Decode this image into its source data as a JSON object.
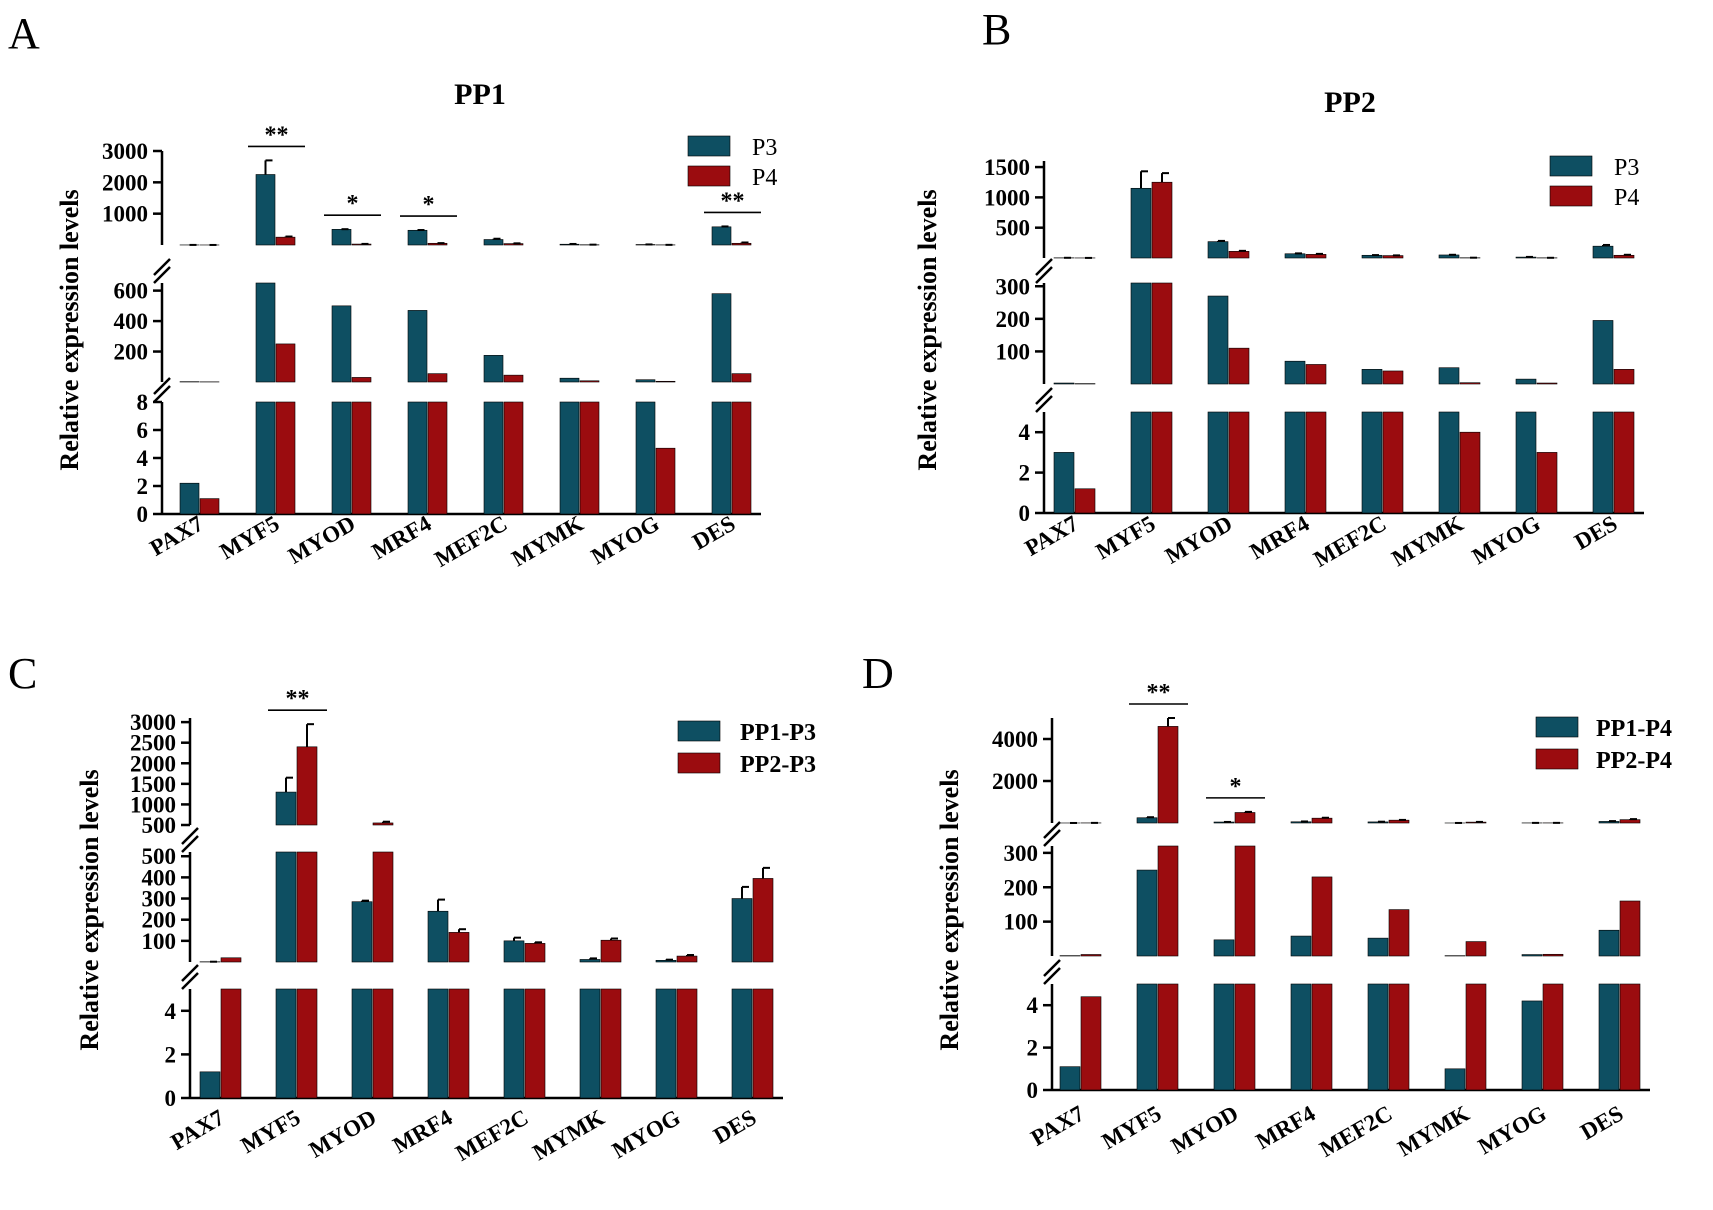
{
  "colors": {
    "series1": "#0e4f62",
    "series2": "#9b0c0f",
    "axis": "#000000"
  },
  "chart_data": [
    {
      "panel": "A",
      "type": "bar",
      "title": "PP1",
      "ylabel": "Relative expression levels",
      "xlabel": "",
      "legend_position": "top-right",
      "legend_bold": false,
      "categories": [
        "PAX7",
        "MYF5",
        "MYOD",
        "MRF4",
        "MEF2C",
        "MYMK",
        "MYOG",
        "DES"
      ],
      "series": [
        {
          "name": "P3",
          "values": [
            2.2,
            2250,
            500,
            470,
            175,
            25,
            15,
            580
          ],
          "errors": [
            0.15,
            450,
            5,
            8,
            25,
            8,
            3,
            12
          ]
        },
        {
          "name": "P4",
          "values": [
            1.1,
            250,
            30,
            55,
            45,
            8,
            4.7,
            55
          ],
          "errors": [
            0.1,
            20,
            5,
            5,
            8,
            3,
            0.1,
            25
          ]
        }
      ],
      "y_segments": [
        {
          "range": [
            0,
            8
          ],
          "ticks": [
            "0",
            "2",
            "4",
            "6",
            "8"
          ]
        },
        {
          "range": [
            0,
            650
          ],
          "ticks": [
            "200",
            "400",
            "600"
          ]
        },
        {
          "range": [
            0,
            3000
          ],
          "ticks": [
            "1000",
            "2000",
            "3000"
          ]
        }
      ],
      "significance": [
        {
          "category": "MYF5",
          "label": "**"
        },
        {
          "category": "MYOD",
          "label": "*"
        },
        {
          "category": "MRF4",
          "label": "*"
        },
        {
          "category": "DES",
          "label": "**"
        }
      ]
    },
    {
      "panel": "B",
      "type": "bar",
      "title": "PP2",
      "ylabel": "Relative expression levels",
      "xlabel": "",
      "legend_position": "top-right",
      "legend_bold": false,
      "categories": [
        "PAX7",
        "MYF5",
        "MYOD",
        "MRF4",
        "MEF2C",
        "MYMK",
        "MYOG",
        "DES"
      ],
      "series": [
        {
          "name": "P3",
          "values": [
            3.0,
            1150,
            270,
            70,
            45,
            50,
            15,
            195
          ],
          "errors": [
            0.35,
            280,
            12,
            6,
            3,
            3,
            3,
            20
          ]
        },
        {
          "name": "P4",
          "values": [
            1.2,
            1250,
            110,
            60,
            40,
            4,
            3.0,
            45
          ],
          "errors": [
            0.25,
            150,
            8,
            8,
            3,
            1,
            0.3,
            8
          ]
        }
      ],
      "y_segments": [
        {
          "range": [
            0,
            5
          ],
          "ticks": [
            "0",
            "2",
            "4"
          ]
        },
        {
          "range": [
            0,
            310
          ],
          "ticks": [
            "100",
            "200",
            "300"
          ]
        },
        {
          "range": [
            0,
            1600
          ],
          "ticks": [
            "500",
            "1000",
            "1500"
          ]
        }
      ],
      "significance": []
    },
    {
      "panel": "C",
      "type": "bar",
      "title": "",
      "ylabel": "Relative expression levels",
      "xlabel": "",
      "legend_position": "top-right",
      "legend_bold": true,
      "categories": [
        "PAX7",
        "MYF5",
        "MYOD",
        "MRF4",
        "MEF2C",
        "MYMK",
        "MYOG",
        "DES"
      ],
      "series": [
        {
          "name": "PP1-P3",
          "values": [
            1.2,
            1300,
            285,
            240,
            100,
            12,
            8,
            300
          ],
          "errors": [
            0.15,
            350,
            5,
            55,
            15,
            5,
            3,
            55
          ]
        },
        {
          "name": "PP2-P3",
          "values": [
            20,
            2400,
            550,
            140,
            88,
            103,
            28,
            395
          ],
          "errors": [
            0,
            550,
            30,
            15,
            5,
            8,
            5,
            50
          ]
        }
      ],
      "y_segments": [
        {
          "range": [
            0,
            5
          ],
          "ticks": [
            "0",
            "2",
            "4"
          ]
        },
        {
          "range": [
            0,
            520
          ],
          "ticks": [
            "100",
            "200",
            "300",
            "400",
            "500"
          ]
        },
        {
          "range": [
            500,
            3100
          ],
          "ticks": [
            "500",
            "1000",
            "1500",
            "2000",
            "2500",
            "3000"
          ]
        }
      ],
      "significance": [
        {
          "category": "MYF5",
          "label": "**"
        }
      ]
    },
    {
      "panel": "D",
      "type": "bar",
      "title": "",
      "ylabel": "Relative expression levels",
      "xlabel": "",
      "legend_position": "top-right",
      "legend_bold": true,
      "categories": [
        "PAX7",
        "MYF5",
        "MYOD",
        "MRF4",
        "MEF2C",
        "MYMK",
        "MYOG",
        "DES"
      ],
      "series": [
        {
          "name": "PP1-P4",
          "values": [
            1.1,
            250,
            47,
            58,
            52,
            1,
            4.2,
            75
          ],
          "errors": [
            0.1,
            25,
            3,
            15,
            10,
            1,
            0.8,
            15
          ]
        },
        {
          "name": "PP2-P4",
          "values": [
            4.4,
            4600,
            500,
            230,
            135,
            42,
            5,
            160
          ],
          "errors": [
            0.6,
            400,
            30,
            20,
            12,
            10,
            1,
            25
          ]
        }
      ],
      "y_segments": [
        {
          "range": [
            0,
            5
          ],
          "ticks": [
            "0",
            "2",
            "4"
          ]
        },
        {
          "range": [
            0,
            320
          ],
          "ticks": [
            "100",
            "200",
            "300"
          ]
        },
        {
          "range": [
            0,
            5000
          ],
          "ticks": [
            "2000",
            "4000"
          ]
        }
      ],
      "significance": [
        {
          "category": "MYF5",
          "label": "**"
        },
        {
          "category": "MYOD",
          "label": "*"
        }
      ]
    }
  ]
}
